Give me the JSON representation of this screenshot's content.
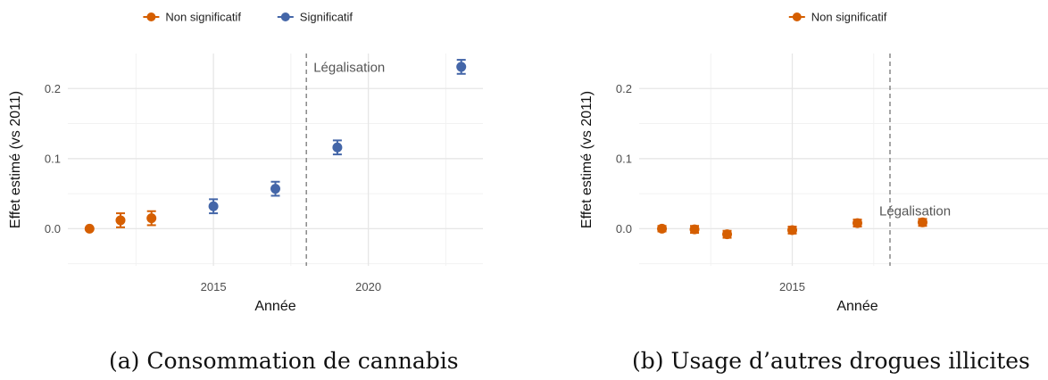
{
  "colors": {
    "non_significant": "#D55E00",
    "significant": "#4466A8",
    "grid_major": "#E6E6E6",
    "grid_minor": "#F2F2F2",
    "vline": "#888888"
  },
  "panels": [
    {
      "caption": "(a) Consommation de cannabis",
      "legend": [
        {
          "label": "Non significatif",
          "status": "non_significant"
        },
        {
          "label": "Significatif",
          "status": "significant"
        }
      ]
    },
    {
      "caption": "(b) Usage d’autres drogues illicites",
      "legend": [
        {
          "label": "Non significatif",
          "status": "non_significant"
        }
      ]
    }
  ],
  "chart_data": [
    {
      "type": "scatter",
      "xlabel": "Année",
      "ylabel": "Effet estimé (vs 2011)",
      "xlim": [
        2010.3,
        2023.7
      ],
      "ylim": [
        -0.053,
        0.25
      ],
      "x_ticks": [
        2015,
        2020
      ],
      "y_ticks": [
        0.0,
        0.1,
        0.2
      ],
      "y_tick_labels": [
        "0.0",
        "0.1",
        "0.2"
      ],
      "grid": true,
      "legend_position": "top",
      "vline": {
        "x": 2018,
        "label": "Légalisation",
        "style": "dashed"
      },
      "points": [
        {
          "x": 2011,
          "y": 0.0,
          "lo": 0.0,
          "hi": 0.0,
          "status": "non_significant"
        },
        {
          "x": 2012,
          "y": 0.012,
          "lo": 0.002,
          "hi": 0.022,
          "status": "non_significant"
        },
        {
          "x": 2013,
          "y": 0.015,
          "lo": 0.005,
          "hi": 0.025,
          "status": "non_significant"
        },
        {
          "x": 2015,
          "y": 0.032,
          "lo": 0.022,
          "hi": 0.042,
          "status": "significant"
        },
        {
          "x": 2017,
          "y": 0.057,
          "lo": 0.047,
          "hi": 0.067,
          "status": "significant"
        },
        {
          "x": 2019,
          "y": 0.116,
          "lo": 0.106,
          "hi": 0.126,
          "status": "significant"
        },
        {
          "x": 2023,
          "y": 0.231,
          "lo": 0.221,
          "hi": 0.241,
          "status": "significant"
        }
      ]
    },
    {
      "type": "scatter",
      "xlabel": "Année",
      "ylabel": "Effet estimé (vs 2011)",
      "xlim": [
        2010.3,
        2023.7
      ],
      "ylim": [
        -0.053,
        0.25
      ],
      "x_ticks": [
        2015
      ],
      "y_ticks": [
        0.0,
        0.1,
        0.2
      ],
      "y_tick_labels": [
        "0.0",
        "0.1",
        "0.2"
      ],
      "grid": true,
      "legend_position": "top",
      "vline": {
        "x": 2018,
        "label": "Légalisation",
        "style": "dashed"
      },
      "points": [
        {
          "x": 2011,
          "y": 0.0,
          "lo": -0.004,
          "hi": 0.004,
          "status": "non_significant"
        },
        {
          "x": 2012,
          "y": -0.001,
          "lo": -0.006,
          "hi": 0.004,
          "status": "non_significant"
        },
        {
          "x": 2013,
          "y": -0.008,
          "lo": -0.013,
          "hi": -0.003,
          "status": "non_significant"
        },
        {
          "x": 2015,
          "y": -0.002,
          "lo": -0.007,
          "hi": 0.003,
          "status": "non_significant"
        },
        {
          "x": 2017,
          "y": 0.008,
          "lo": 0.003,
          "hi": 0.013,
          "status": "non_significant"
        },
        {
          "x": 2019,
          "y": 0.009,
          "lo": 0.004,
          "hi": 0.014,
          "status": "non_significant"
        }
      ]
    }
  ]
}
